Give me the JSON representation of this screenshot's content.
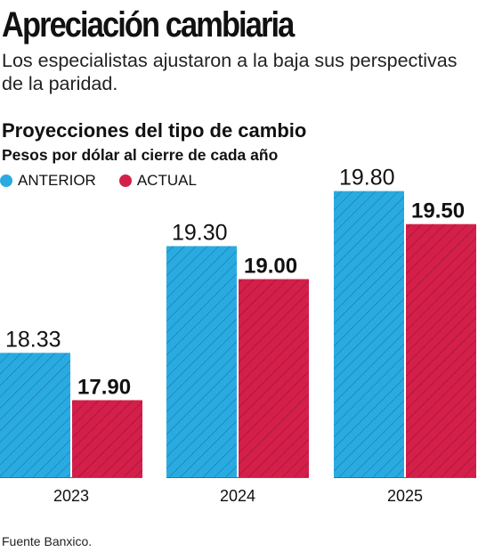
{
  "header": {
    "title": "Apreciación cambiaria",
    "subtitle": "Los especialistas ajustaron a la baja sus perspectivas de la paridad."
  },
  "chart_data": {
    "type": "bar",
    "title": "Proyecciones del tipo de cambio",
    "subtitle": "Pesos por dólar al cierre de cada año",
    "categories": [
      "2023",
      "2024",
      "2025"
    ],
    "series": [
      {
        "name": "ANTERIOR",
        "values": [
          18.33,
          19.3,
          19.8
        ],
        "labels": [
          "18.33",
          "19.30",
          "19.80"
        ],
        "color": "#29abe2"
      },
      {
        "name": "ACTUAL",
        "values": [
          17.9,
          19.0,
          19.5
        ],
        "labels": [
          "17.90",
          "19.00",
          "19.50"
        ],
        "color": "#d41f4a"
      }
    ],
    "legend_position": "top-left",
    "grid": false
  },
  "footer": {
    "source": "Fuente Banxico."
  }
}
